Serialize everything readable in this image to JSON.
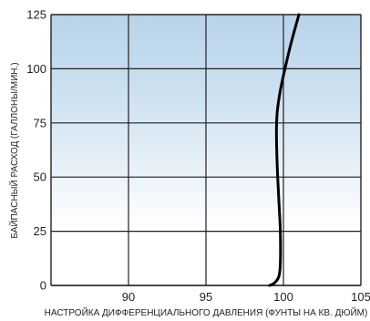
{
  "chart_data": {
    "type": "line",
    "xlabel": "НАСТРОЙКА ДИФФЕРЕНЦИАЛЬНОГО ДАВЛЕНИЯ (ФУНТЫ НА КВ. ДЮЙМ)",
    "ylabel": "БАЙПАСНЫЙ РАСХОД (ГАЛЛОНЫ/МИН.)",
    "xlim": [
      85,
      105
    ],
    "ylim": [
      0,
      125
    ],
    "x_ticks": [
      90,
      95,
      100,
      105
    ],
    "y_ticks": [
      0,
      25,
      50,
      75,
      100,
      125
    ],
    "x_tick_labels": [
      "90",
      "95",
      "100",
      "105"
    ],
    "y_tick_labels": [
      "0",
      "25",
      "50",
      "75",
      "100",
      "125"
    ],
    "grid": true,
    "background_gradient": {
      "top": "#b8d3ea",
      "bottom": "#ffffff"
    },
    "series": [
      {
        "color": "#000000",
        "x": [
          99.1,
          99.4,
          99.7,
          99.8,
          99.8,
          99.7,
          99.6,
          99.55,
          99.6,
          99.8,
          100.1,
          100.5,
          101.0
        ],
        "y": [
          0,
          1,
          4,
          10,
          25,
          40,
          55,
          70,
          80,
          90,
          100,
          112,
          125
        ]
      }
    ]
  }
}
